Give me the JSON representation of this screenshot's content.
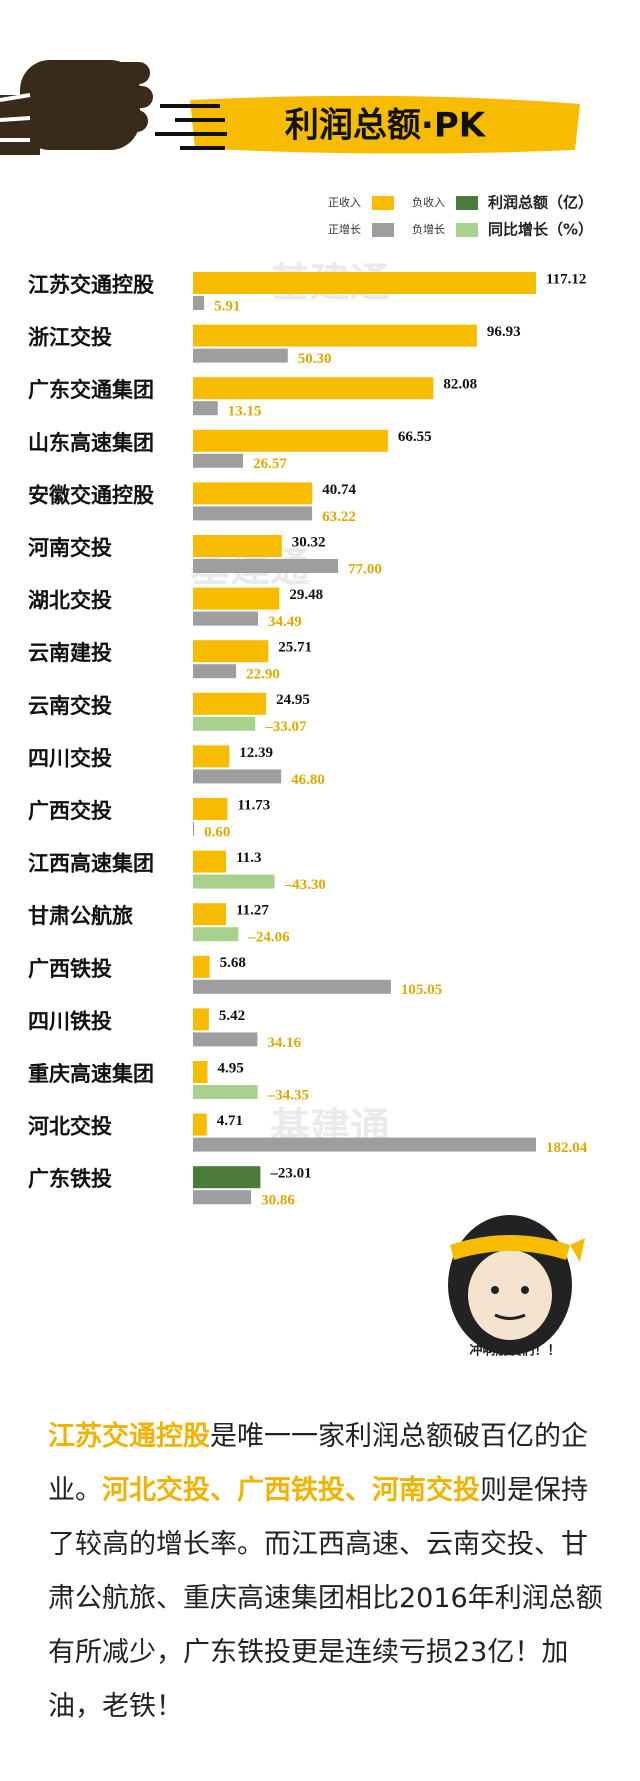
{
  "chart_data": {
    "type": "bar",
    "title": "利润总额·PK",
    "categories": [
      "江苏交通控股",
      "浙江交投",
      "广东交通集团",
      "山东高速集团",
      "安徽交通控股",
      "河南交投",
      "湖北交投",
      "云南建投",
      "云南交投",
      "四川交投",
      "广西交投",
      "江西高速集团",
      "甘肃公航旅",
      "广西铁投",
      "四川铁投",
      "重庆高速集团",
      "河北交投",
      "广东铁投"
    ],
    "series": [
      {
        "name": "利润总额（亿）",
        "color": "#f7bc00",
        "negative_color": "#4b7b3b",
        "positive_label": "正收入",
        "negative_label": "负收入",
        "values": [
          117.12,
          96.93,
          82.08,
          66.55,
          40.74,
          30.32,
          29.48,
          25.71,
          24.95,
          12.39,
          11.73,
          11.3,
          11.27,
          5.68,
          5.42,
          4.95,
          4.71,
          -23.01
        ],
        "value_labels": [
          "117.12",
          "96.93",
          "82.08",
          "66.55",
          "40.74",
          "30.32",
          "29.48",
          "25.71",
          "24.95",
          "12.39",
          "11.73",
          "11.3",
          "11.27",
          "5.68",
          "5.42",
          "4.95",
          "4.71",
          "–23.01"
        ]
      },
      {
        "name": "同比增长（%）",
        "color": "#9e9e9e",
        "negative_color": "#a9d18e",
        "positive_label": "正增长",
        "negative_label": "负增长",
        "values": [
          5.91,
          50.3,
          13.15,
          26.57,
          63.22,
          77.0,
          34.49,
          22.9,
          -33.07,
          46.8,
          0.6,
          -43.3,
          -24.06,
          105.05,
          34.16,
          -34.35,
          182.04,
          30.86
        ],
        "value_labels": [
          "5.91",
          "50.30",
          "13.15",
          "26.57",
          "63.22",
          "77.00",
          "34.49",
          "22.90",
          "–33.07",
          "46.80",
          "0.60",
          "–43.30",
          "–24.06",
          "105.05",
          "34.16",
          "–34.35",
          "182.04",
          "30.86"
        ]
      }
    ],
    "watermark": "基建通"
  },
  "caption": "冲啊朋友们！！",
  "paragraph": [
    {
      "text": "江苏交通控股",
      "emphasis": true
    },
    {
      "text": "是唯一一家利润总额破百亿的企业。",
      "emphasis": false
    },
    {
      "text": "河北交投、广西铁投、河南交投",
      "emphasis": true
    },
    {
      "text": "则是保持了较高的增长率。而江西高速、云南交投、甘肃公航旅、重庆高速集团相比2016年利润总额有所减少，广东铁投更是连续亏损23亿！加油，老铁！",
      "emphasis": false
    }
  ]
}
